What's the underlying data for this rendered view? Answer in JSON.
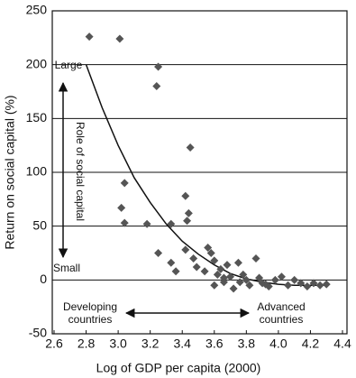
{
  "chart_data": {
    "type": "scatter",
    "y_label": "Return on social capital (%)",
    "x_label": "Log of GDP per capita (2000)",
    "annotations": [
      "Large",
      "Small",
      "Role of social capital",
      "Developing",
      "countries",
      "Advanced",
      "countries"
    ],
    "x": [
      2.82,
      3.01,
      3.25,
      3.24,
      3.45,
      3.04,
      3.02,
      3.04,
      3.18,
      3.42,
      3.44,
      3.43,
      3.33,
      3.25,
      3.33,
      3.36,
      3.42,
      3.47,
      3.49,
      3.54,
      3.56,
      3.58,
      3.6,
      3.62,
      3.64,
      3.66,
      3.68,
      3.7,
      3.72,
      3.75,
      3.78,
      3.8,
      3.82,
      3.86,
      3.88,
      3.9,
      3.94,
      3.98,
      4.02,
      4.06,
      4.1,
      4.14,
      4.18,
      4.22,
      4.26,
      4.3,
      3.6,
      3.66,
      3.76,
      3.92
    ],
    "values": [
      226,
      224,
      198,
      180,
      123,
      90,
      67,
      53,
      52,
      78,
      62,
      55,
      52,
      25,
      16,
      8,
      28,
      20,
      12,
      8,
      30,
      25,
      18,
      5,
      10,
      -2,
      14,
      3,
      -8,
      16,
      5,
      0,
      -5,
      20,
      2,
      -3,
      -6,
      0,
      3,
      -5,
      0,
      -3,
      -6,
      -3,
      -5,
      -4,
      -5,
      2,
      -2,
      -4
    ],
    "color": "#555555",
    "curve": {
      "x": [
        2.8,
        2.9,
        3.0,
        3.1,
        3.2,
        3.3,
        3.4,
        3.5,
        3.6,
        3.7,
        3.8,
        3.9,
        4.0,
        4.1,
        4.2,
        4.3
      ],
      "values": [
        200,
        160,
        125,
        95,
        72,
        52,
        36,
        24,
        14,
        6,
        1,
        -2,
        -4,
        -5,
        -5,
        -5
      ],
      "color": "#111111"
    },
    "xlim": [
      2.6,
      4.4
    ],
    "ylim": [
      -50,
      250
    ],
    "xticks": [
      2.6,
      2.8,
      {
        "value": 3,
        "label": "3.0"
      },
      3.2,
      3.4,
      3.6,
      3.8,
      {
        "value": 4,
        "label": "4.0"
      },
      4.2,
      4.4
    ],
    "yticks": [
      -50,
      0,
      50,
      100,
      150,
      200,
      250
    ],
    "grid": true
  }
}
